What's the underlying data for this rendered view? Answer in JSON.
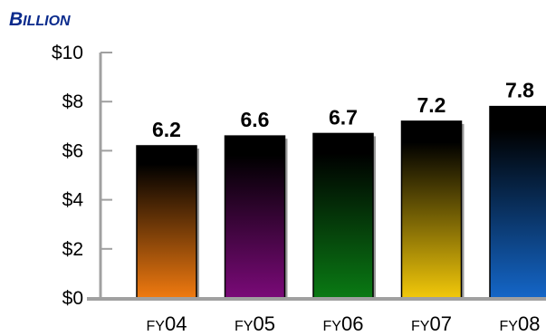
{
  "chart_data": {
    "type": "bar",
    "unit_label": "Billion",
    "categories": [
      "FY04",
      "FY05",
      "FY06",
      "FY07",
      "FY08"
    ],
    "values": [
      6.2,
      6.6,
      6.7,
      7.2,
      7.8
    ],
    "value_labels": [
      "6.2",
      "6.6",
      "6.7",
      "7.2",
      "7.8"
    ],
    "bar_colors": [
      "#f07a10",
      "#7a0a78",
      "#0a7a14",
      "#f2c80a",
      "#1466c8"
    ],
    "bar_top_color": "#000000",
    "ylim": [
      0,
      10
    ],
    "yticks": [
      0,
      2,
      4,
      6,
      8,
      10
    ],
    "ytick_labels": [
      "$0",
      "$2",
      "$4",
      "$6",
      "$8",
      "$10"
    ],
    "grid": false,
    "legend": "none"
  }
}
